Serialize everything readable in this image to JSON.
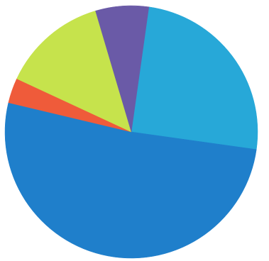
{
  "chart_data": {
    "type": "pie",
    "title": "",
    "grid": false,
    "legend": "none",
    "slices": [
      {
        "value": 25.0,
        "color": "#27a8d8"
      },
      {
        "value": 51.5,
        "color": "#1f7fcb"
      },
      {
        "value": 3.2,
        "color": "#ef5b3a"
      },
      {
        "value": 13.5,
        "color": "#c6e34c"
      },
      {
        "value": 6.8,
        "color": "#6a5aa7"
      }
    ]
  }
}
